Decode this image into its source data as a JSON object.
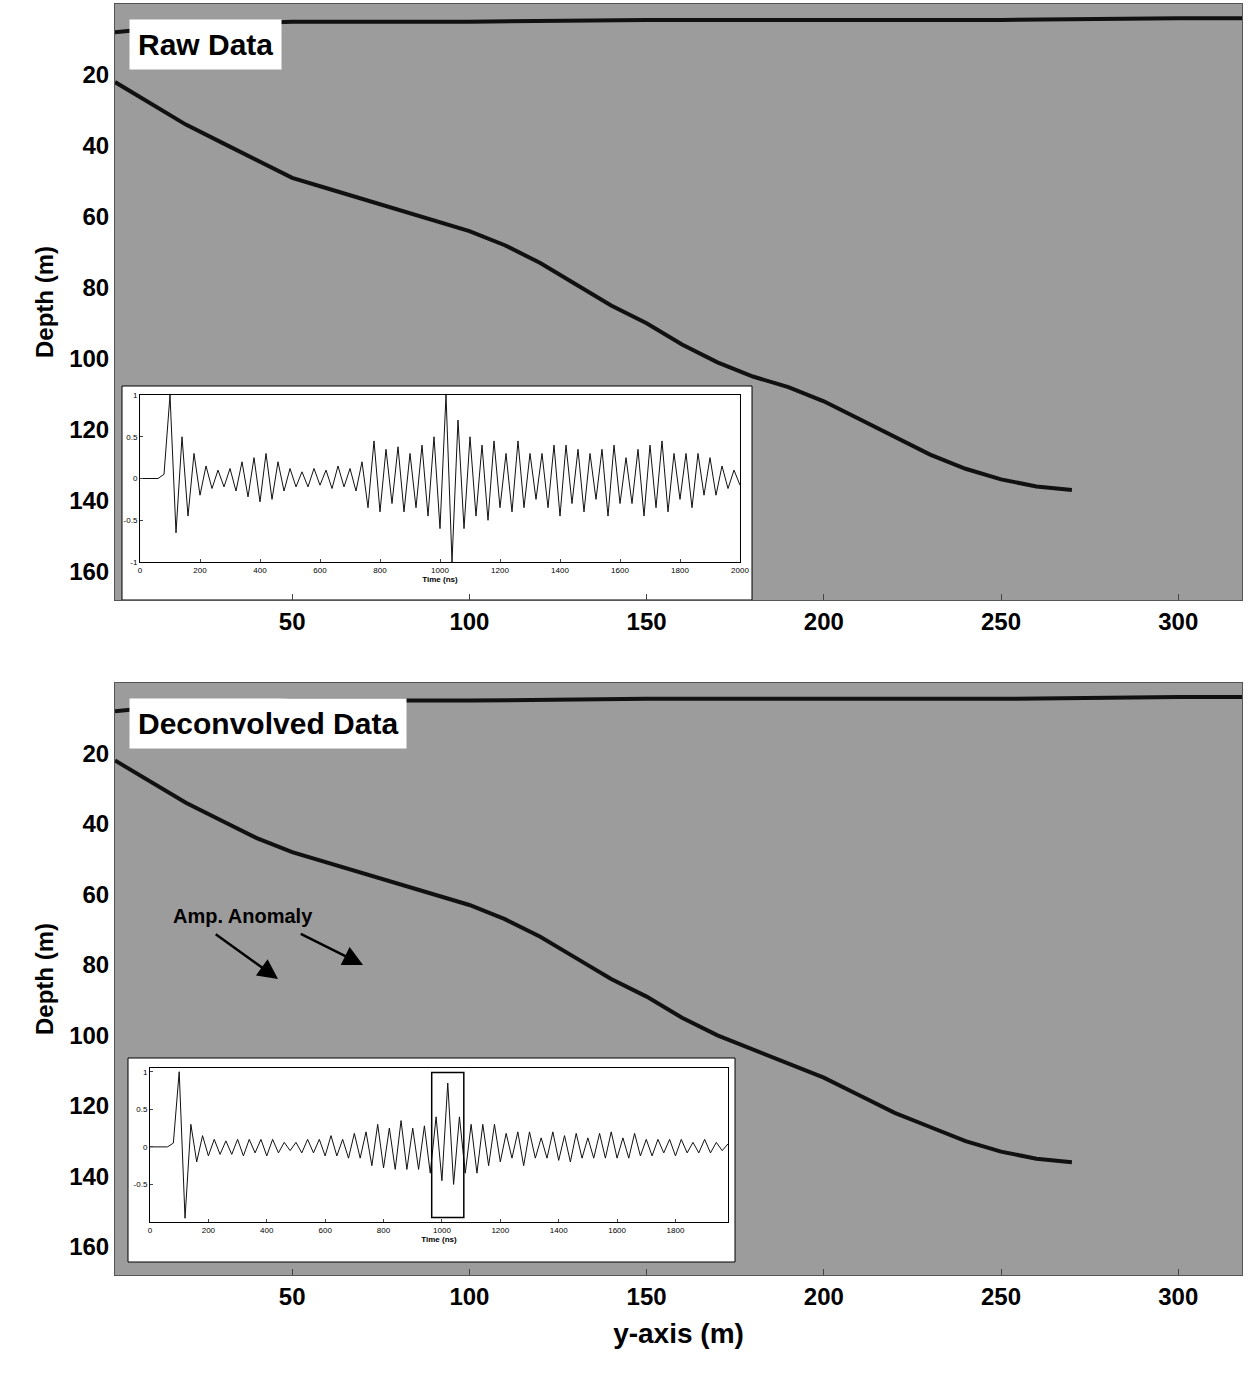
{
  "chart_data": [
    {
      "type": "line",
      "title": "Raw Data",
      "y_label": "Depth (m)",
      "grid": false,
      "xlim": [
        0,
        318
      ],
      "ylim": [
        168,
        0
      ],
      "xticks": [
        50,
        100,
        150,
        200,
        250,
        300
      ],
      "yticks": [
        20,
        40,
        60,
        80,
        100,
        120,
        140,
        160
      ],
      "series": [
        {
          "color": "#111111",
          "line_style": "solid",
          "x": [
            0,
            20,
            50,
            100,
            150,
            200,
            250,
            300,
            318
          ],
          "values": [
            8,
            6,
            5,
            5,
            4.5,
            4.5,
            4.5,
            4,
            4
          ]
        },
        {
          "color": "#111111",
          "line_style": "solid",
          "x": [
            0,
            10,
            20,
            30,
            40,
            50,
            60,
            70,
            80,
            90,
            100,
            110,
            120,
            130,
            140,
            150,
            160,
            170,
            180,
            190,
            200,
            210,
            220,
            230,
            240,
            250,
            260,
            270
          ],
          "values": [
            22,
            28,
            34,
            39,
            44,
            49,
            52,
            55,
            58,
            61,
            64,
            68,
            73,
            79,
            85,
            90,
            96,
            101,
            105,
            108,
            112,
            117,
            122,
            127,
            131,
            134,
            136,
            137
          ]
        }
      ],
      "inset": {
        "type": "line",
        "x_label": "Time (ns)",
        "color": "#111111",
        "xlim": [
          0,
          2000
        ],
        "ylim": [
          -1,
          1
        ],
        "xticks": [
          0,
          200,
          400,
          600,
          800,
          1000,
          1200,
          1400,
          1600,
          1800,
          2000
        ],
        "yticks": [
          -1,
          -0.5,
          0,
          0.5,
          1
        ],
        "x": [
          0,
          20,
          40,
          60,
          80,
          100,
          120,
          140,
          160,
          180,
          200,
          220,
          240,
          260,
          280,
          300,
          320,
          340,
          360,
          380,
          400,
          420,
          440,
          460,
          480,
          500,
          520,
          540,
          560,
          580,
          600,
          620,
          640,
          660,
          680,
          700,
          720,
          740,
          760,
          780,
          800,
          820,
          840,
          860,
          880,
          900,
          920,
          940,
          960,
          980,
          1000,
          1020,
          1040,
          1060,
          1080,
          1100,
          1120,
          1140,
          1160,
          1180,
          1200,
          1220,
          1240,
          1260,
          1280,
          1300,
          1320,
          1340,
          1360,
          1380,
          1400,
          1420,
          1440,
          1460,
          1480,
          1500,
          1520,
          1540,
          1560,
          1580,
          1600,
          1620,
          1640,
          1660,
          1680,
          1700,
          1720,
          1740,
          1760,
          1780,
          1800,
          1820,
          1840,
          1860,
          1880,
          1900,
          1920,
          1940,
          1960,
          1980,
          2000
        ],
        "values": [
          0,
          0,
          0,
          0,
          0.05,
          1,
          -0.65,
          0.5,
          -0.45,
          0.3,
          -0.2,
          0.15,
          -0.12,
          0.1,
          -0.1,
          0.12,
          -0.15,
          0.2,
          -0.22,
          0.25,
          -0.28,
          0.3,
          -0.25,
          0.2,
          -0.15,
          0.12,
          -0.1,
          0.08,
          -0.1,
          0.12,
          -0.08,
          0.1,
          -0.12,
          0.15,
          -0.1,
          0.12,
          -0.15,
          0.2,
          -0.35,
          0.45,
          -0.4,
          0.35,
          -0.3,
          0.38,
          -0.4,
          0.3,
          -0.35,
          0.4,
          -0.45,
          0.5,
          -0.6,
          1,
          -1,
          0.7,
          -0.6,
          0.5,
          -0.45,
          0.4,
          -0.5,
          0.45,
          -0.35,
          0.3,
          -0.4,
          0.45,
          -0.35,
          0.3,
          -0.25,
          0.3,
          -0.35,
          0.4,
          -0.45,
          0.4,
          -0.3,
          0.35,
          -0.4,
          0.3,
          -0.25,
          0.35,
          -0.45,
          0.4,
          -0.3,
          0.25,
          -0.3,
          0.35,
          -0.45,
          0.4,
          -0.35,
          0.45,
          -0.4,
          0.3,
          -0.25,
          0.3,
          -0.35,
          0.3,
          -0.2,
          0.25,
          -0.2,
          0.15,
          -0.12,
          0.1,
          -0.08
        ]
      }
    },
    {
      "type": "line",
      "title": "Deconvolved Data",
      "x_label": "y-axis (m)",
      "y_label": "Depth (m)",
      "grid": false,
      "xlim": [
        0,
        318
      ],
      "ylim": [
        168,
        0
      ],
      "xticks": [
        50,
        100,
        150,
        200,
        250,
        300
      ],
      "yticks": [
        20,
        40,
        60,
        80,
        100,
        120,
        140,
        160
      ],
      "series": [
        {
          "color": "#111111",
          "line_style": "solid",
          "x": [
            0,
            20,
            50,
            100,
            150,
            200,
            250,
            300,
            318
          ],
          "values": [
            8,
            6,
            5,
            5,
            4.5,
            4.5,
            4.5,
            4,
            4
          ]
        },
        {
          "color": "#111111",
          "line_style": "solid",
          "x": [
            0,
            10,
            20,
            30,
            40,
            50,
            60,
            70,
            80,
            90,
            100,
            110,
            120,
            130,
            140,
            150,
            160,
            170,
            180,
            190,
            200,
            210,
            220,
            230,
            240,
            250,
            260,
            270
          ],
          "values": [
            22,
            28,
            34,
            39,
            44,
            48,
            51,
            54,
            57,
            60,
            63,
            67,
            72,
            78,
            84,
            89,
            95,
            100,
            104,
            108,
            112,
            117,
            122,
            126,
            130,
            133,
            135,
            136
          ]
        }
      ],
      "annotations": [
        {
          "text": "Amp. Anomaly",
          "x": 36,
          "y": 66,
          "arrows": [
            {
              "x": 46,
              "y": 84
            },
            {
              "x": 70,
              "y": 80
            }
          ]
        }
      ],
      "inset": {
        "type": "line",
        "x_label": "Time (ns)",
        "color": "#111111",
        "xlim": [
          0,
          1980
        ],
        "ylim": [
          -1,
          1.05
        ],
        "xticks": [
          0,
          200,
          400,
          600,
          800,
          1000,
          1200,
          1400,
          1600,
          1800
        ],
        "yticks": [
          -0.5,
          0,
          0.5,
          1
        ],
        "box_x": [
          965,
          1075
        ],
        "x": [
          0,
          20,
          40,
          60,
          80,
          100,
          120,
          140,
          160,
          180,
          200,
          220,
          240,
          260,
          280,
          300,
          320,
          340,
          360,
          380,
          400,
          420,
          440,
          460,
          480,
          500,
          520,
          540,
          560,
          580,
          600,
          620,
          640,
          660,
          680,
          700,
          720,
          740,
          760,
          780,
          800,
          820,
          840,
          860,
          880,
          900,
          920,
          940,
          960,
          980,
          1000,
          1020,
          1040,
          1060,
          1080,
          1100,
          1120,
          1140,
          1160,
          1180,
          1200,
          1220,
          1240,
          1260,
          1280,
          1300,
          1320,
          1340,
          1360,
          1380,
          1400,
          1420,
          1440,
          1460,
          1480,
          1500,
          1520,
          1540,
          1560,
          1580,
          1600,
          1620,
          1640,
          1660,
          1680,
          1700,
          1720,
          1740,
          1760,
          1780,
          1800,
          1820,
          1840,
          1860,
          1880,
          1900,
          1920,
          1940,
          1960,
          1980
        ],
        "values": [
          0,
          0,
          0,
          0,
          0.05,
          1,
          -0.95,
          0.3,
          -0.2,
          0.15,
          -0.12,
          0.1,
          -0.1,
          0.08,
          -0.1,
          0.1,
          -0.12,
          0.1,
          -0.08,
          0.1,
          -0.12,
          0.1,
          -0.08,
          0.06,
          -0.05,
          0.06,
          -0.08,
          0.1,
          -0.08,
          0.1,
          -0.12,
          0.15,
          -0.12,
          0.1,
          -0.15,
          0.18,
          -0.15,
          0.2,
          -0.25,
          0.3,
          -0.28,
          0.25,
          -0.3,
          0.35,
          -0.3,
          0.25,
          -0.3,
          0.28,
          -0.35,
          0.4,
          -0.45,
          0.85,
          -0.5,
          0.4,
          -0.35,
          0.3,
          -0.35,
          0.3,
          -0.25,
          0.3,
          -0.2,
          0.18,
          -0.15,
          0.2,
          -0.25,
          0.2,
          -0.15,
          0.12,
          -0.15,
          0.2,
          -0.18,
          0.15,
          -0.2,
          0.18,
          -0.15,
          0.12,
          -0.15,
          0.18,
          -0.15,
          0.2,
          -0.15,
          0.12,
          -0.15,
          0.18,
          -0.12,
          0.1,
          -0.12,
          0.1,
          -0.08,
          0.1,
          -0.12,
          0.1,
          -0.08,
          0.06,
          -0.08,
          0.1,
          -0.08,
          0.06,
          -0.05,
          0.04
        ]
      }
    }
  ]
}
